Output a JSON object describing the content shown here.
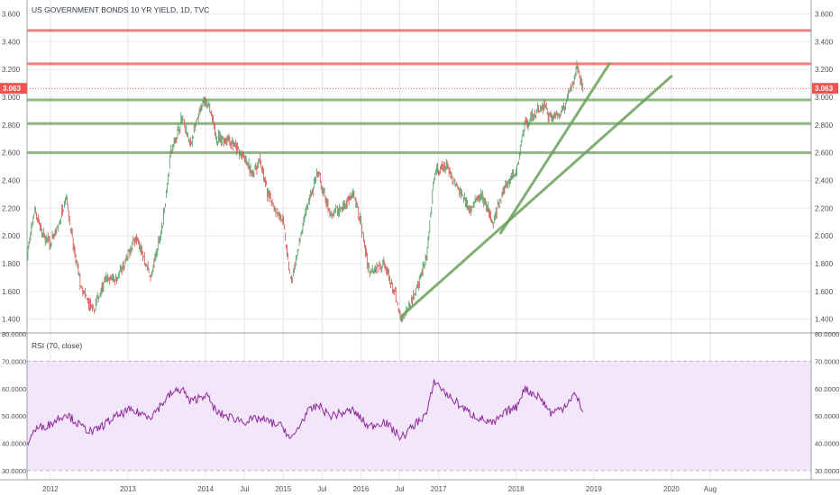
{
  "chart_data": [
    {
      "type": "candlestick",
      "title": "US GOVERNMENT BONDS 10 YR YIELD, 1D, TVC",
      "ylim": [
        1.3,
        3.7
      ],
      "y_ticks": [
        1.4,
        1.6,
        1.8,
        2.0,
        2.2,
        2.4,
        2.6,
        2.8,
        3.0,
        3.2,
        3.4,
        3.6
      ],
      "y_tick_labels": [
        "1.400",
        "1.600",
        "1.800",
        "2.000",
        "2.200",
        "2.400",
        "2.600",
        "2.800",
        "3.000",
        "3.200",
        "3.400",
        "3.600"
      ],
      "last_price": 3.063,
      "last_price_label": "3.063",
      "x_ticks": [
        {
          "t": 2012.0,
          "label": "2012"
        },
        {
          "t": 2013.0,
          "label": "2013"
        },
        {
          "t": 2014.0,
          "label": "2014"
        },
        {
          "t": 2014.5,
          "label": "Jul"
        },
        {
          "t": 2015.0,
          "label": "2015"
        },
        {
          "t": 2015.5,
          "label": "Jul"
        },
        {
          "t": 2016.0,
          "label": "2016"
        },
        {
          "t": 2016.5,
          "label": "Jul"
        },
        {
          "t": 2017.0,
          "label": "2017"
        },
        {
          "t": 2018.0,
          "label": "2018"
        },
        {
          "t": 2019.0,
          "label": "2019"
        },
        {
          "t": 2020.0,
          "label": "2020"
        },
        {
          "t": 2020.5,
          "label": "Aug"
        }
      ],
      "xlim": [
        2011.7,
        2021.8
      ],
      "price_path": [
        [
          2011.7,
          1.85
        ],
        [
          2011.8,
          2.2
        ],
        [
          2011.9,
          2.0
        ],
        [
          2012.0,
          1.95
        ],
        [
          2012.1,
          2.05
        ],
        [
          2012.2,
          2.3
        ],
        [
          2012.3,
          1.9
        ],
        [
          2012.4,
          1.62
        ],
        [
          2012.55,
          1.45
        ],
        [
          2012.7,
          1.68
        ],
        [
          2012.85,
          1.7
        ],
        [
          2012.95,
          1.78
        ],
        [
          2013.1,
          2.0
        ],
        [
          2013.3,
          1.7
        ],
        [
          2013.45,
          2.1
        ],
        [
          2013.55,
          2.6
        ],
        [
          2013.7,
          2.85
        ],
        [
          2013.8,
          2.65
        ],
        [
          2013.9,
          2.85
        ],
        [
          2014.0,
          3.0
        ],
        [
          2014.15,
          2.7
        ],
        [
          2014.3,
          2.7
        ],
        [
          2014.5,
          2.55
        ],
        [
          2014.6,
          2.45
        ],
        [
          2014.7,
          2.55
        ],
        [
          2014.8,
          2.3
        ],
        [
          2015.0,
          2.1
        ],
        [
          2015.1,
          1.65
        ],
        [
          2015.3,
          2.2
        ],
        [
          2015.45,
          2.45
        ],
        [
          2015.6,
          2.15
        ],
        [
          2015.75,
          2.2
        ],
        [
          2015.9,
          2.3
        ],
        [
          2016.0,
          2.1
        ],
        [
          2016.1,
          1.75
        ],
        [
          2016.3,
          1.8
        ],
        [
          2016.45,
          1.55
        ],
        [
          2016.52,
          1.37
        ],
        [
          2016.7,
          1.6
        ],
        [
          2016.85,
          1.85
        ],
        [
          2016.95,
          2.45
        ],
        [
          2017.1,
          2.5
        ],
        [
          2017.2,
          2.4
        ],
        [
          2017.4,
          2.2
        ],
        [
          2017.55,
          2.3
        ],
        [
          2017.7,
          2.1
        ],
        [
          2017.85,
          2.35
        ],
        [
          2018.0,
          2.45
        ],
        [
          2018.1,
          2.8
        ],
        [
          2018.2,
          2.85
        ],
        [
          2018.35,
          2.95
        ],
        [
          2018.45,
          2.85
        ],
        [
          2018.6,
          2.9
        ],
        [
          2018.72,
          3.1
        ],
        [
          2018.78,
          3.22
        ],
        [
          2018.82,
          3.15
        ],
        [
          2018.86,
          3.063
        ]
      ],
      "horizontal_levels": [
        {
          "y": 3.48,
          "color": "#ef5350"
        },
        {
          "y": 3.24,
          "color": "#ef5350"
        },
        {
          "y": 2.98,
          "color": "#6aa05a"
        },
        {
          "y": 2.81,
          "color": "#6aa05a"
        },
        {
          "y": 2.6,
          "color": "#6aa05a"
        }
      ],
      "trend_lines": [
        {
          "x1": 2016.52,
          "y1": 1.42,
          "x2": 2020.0,
          "y2": 3.15,
          "color": "#6aa05a"
        },
        {
          "x1": 2017.8,
          "y1": 2.02,
          "x2": 2019.2,
          "y2": 3.24,
          "color": "#6aa05a"
        }
      ]
    },
    {
      "type": "line",
      "title": "RSI (70, close)",
      "ylim": [
        27,
        80
      ],
      "y_ticks": [
        30,
        40,
        50,
        60,
        70,
        80
      ],
      "y_tick_labels": [
        "30.0000",
        "40.0000",
        "50.0000",
        "60.0000",
        "70.0000",
        "80.0000"
      ],
      "band": [
        30,
        70
      ],
      "rsi_path": [
        [
          2011.7,
          40
        ],
        [
          2011.8,
          45
        ],
        [
          2012.0,
          47
        ],
        [
          2012.2,
          51
        ],
        [
          2012.4,
          46
        ],
        [
          2012.55,
          44
        ],
        [
          2012.8,
          49
        ],
        [
          2013.0,
          52
        ],
        [
          2013.3,
          50
        ],
        [
          2013.55,
          58
        ],
        [
          2013.7,
          60
        ],
        [
          2013.8,
          55
        ],
        [
          2014.0,
          58
        ],
        [
          2014.15,
          51
        ],
        [
          2014.5,
          48
        ],
        [
          2014.7,
          49
        ],
        [
          2015.0,
          46
        ],
        [
          2015.1,
          41
        ],
        [
          2015.3,
          51
        ],
        [
          2015.45,
          54
        ],
        [
          2015.6,
          50
        ],
        [
          2015.9,
          52
        ],
        [
          2016.1,
          46
        ],
        [
          2016.3,
          48
        ],
        [
          2016.52,
          42
        ],
        [
          2016.7,
          47
        ],
        [
          2016.85,
          51
        ],
        [
          2016.95,
          63
        ],
        [
          2017.1,
          58
        ],
        [
          2017.4,
          51
        ],
        [
          2017.7,
          47
        ],
        [
          2017.9,
          52
        ],
        [
          2018.0,
          53
        ],
        [
          2018.1,
          60
        ],
        [
          2018.3,
          57
        ],
        [
          2018.45,
          51
        ],
        [
          2018.6,
          53
        ],
        [
          2018.75,
          58
        ],
        [
          2018.86,
          52
        ]
      ]
    }
  ]
}
